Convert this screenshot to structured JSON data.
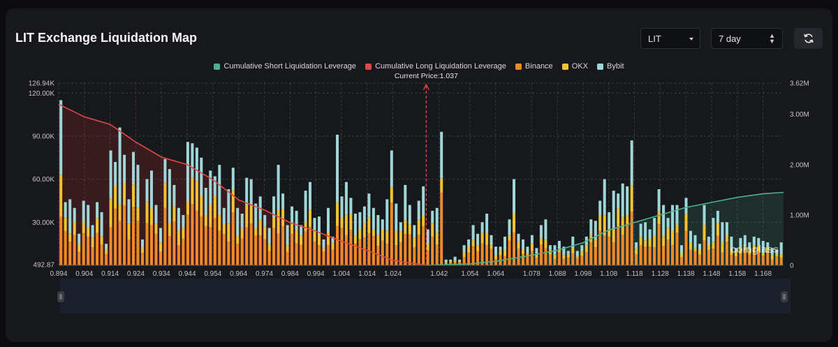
{
  "header": {
    "title": "LIT Exchange Liquidation Map",
    "coin_select": "LIT",
    "range_select": "7 day"
  },
  "watermark": "coinglass",
  "colors": {
    "short_cum": "#4caf8f",
    "long_cum": "#e04848",
    "binance": "#f08a28",
    "okx": "#f2c230",
    "bybit": "#9fd6d8",
    "background": "#17181c"
  },
  "chart_data": {
    "type": "bar",
    "title": "LIT Exchange Liquidation Map",
    "current_price_label": "Current Price:1.037",
    "current_price": 1.037,
    "legend": [
      "Cumulative Short Liquidation Leverage",
      "Cumulative Long Liquidation Leverage",
      "Binance",
      "OKX",
      "Bybit"
    ],
    "x_ticks": [
      "0.894",
      "0.904",
      "0.914",
      "0.924",
      "0.934",
      "0.944",
      "0.954",
      "0.964",
      "0.974",
      "0.984",
      "0.994",
      "1.004",
      "1.014",
      "1.024",
      "1.042",
      "1.054",
      "1.064",
      "1.078",
      "1.088",
      "1.098",
      "1.108",
      "1.118",
      "1.128",
      "1.138",
      "1.148",
      "1.158",
      "1.168"
    ],
    "y_left_ticks": [
      "126.94K",
      "120.00K",
      "90.00K",
      "60.00K",
      "30.00K",
      "492.87"
    ],
    "y_left_range": [
      492.87,
      126940
    ],
    "y_right_ticks": [
      "3.62M",
      "3.00M",
      "2.00M",
      "1.00M",
      "0"
    ],
    "y_right_range": [
      0,
      3620000
    ],
    "price_range": [
      0.894,
      1.176
    ],
    "bars_total": [
      115000,
      44000,
      46000,
      40000,
      22000,
      45000,
      42000,
      28000,
      44000,
      37000,
      15000,
      80000,
      72000,
      96000,
      77000,
      46000,
      79000,
      70000,
      18000,
      60000,
      66000,
      42000,
      26000,
      74000,
      67000,
      56000,
      40000,
      35000,
      86000,
      85000,
      82000,
      75000,
      54000,
      66000,
      62000,
      70000,
      40000,
      53000,
      68000,
      40000,
      36000,
      61000,
      60000,
      43000,
      48000,
      35000,
      26000,
      48000,
      70000,
      50000,
      28000,
      41000,
      38000,
      28000,
      52000,
      58000,
      33000,
      34000,
      18000,
      40000,
      20000,
      91000,
      48000,
      58000,
      47000,
      36000,
      37000,
      41000,
      50000,
      40000,
      35000,
      32000,
      46000,
      80000,
      43000,
      30000,
      56000,
      42000,
      28000,
      45000,
      55000,
      25000,
      38000,
      40000,
      93000,
      4000,
      4000,
      6000,
      4000,
      14000,
      18000,
      28000,
      22000,
      30000,
      36000,
      21000,
      13000,
      13000,
      20000,
      32000,
      60000,
      22000,
      18000,
      13000,
      21000,
      12000,
      28000,
      32000,
      14000,
      14000,
      17000,
      13000,
      10000,
      20000,
      10000,
      14000,
      20000,
      32000,
      31000,
      45000,
      60000,
      37000,
      52000,
      50000,
      57000,
      55000,
      87000,
      16000,
      29000,
      30000,
      25000,
      33000,
      53000,
      42000,
      33000,
      42000,
      42000,
      14000,
      47000,
      24000,
      21000,
      15000,
      42000,
      20000,
      33000,
      38000,
      30000,
      30000,
      20000,
      12000,
      19000,
      21000,
      16000,
      20000,
      19000,
      17000,
      16000,
      12000,
      11000,
      16000
    ],
    "binance_share": 0.42,
    "okx_share": 0.18,
    "long_cum_points": [
      [
        0.894,
        3.2
      ],
      [
        0.904,
        2.95
      ],
      [
        0.914,
        2.8
      ],
      [
        0.924,
        2.45
      ],
      [
        0.934,
        2.15
      ],
      [
        0.944,
        2.0
      ],
      [
        0.954,
        1.7
      ],
      [
        0.964,
        1.3
      ],
      [
        0.974,
        1.1
      ],
      [
        0.984,
        0.85
      ],
      [
        0.994,
        0.68
      ],
      [
        1.004,
        0.48
      ],
      [
        1.014,
        0.3
      ],
      [
        1.024,
        0.1
      ],
      [
        1.037,
        0.0
      ]
    ],
    "short_cum_points": [
      [
        1.037,
        0.0
      ],
      [
        1.054,
        0.03
      ],
      [
        1.064,
        0.08
      ],
      [
        1.078,
        0.2
      ],
      [
        1.088,
        0.3
      ],
      [
        1.098,
        0.45
      ],
      [
        1.108,
        0.7
      ],
      [
        1.118,
        0.85
      ],
      [
        1.128,
        1.0
      ],
      [
        1.138,
        1.15
      ],
      [
        1.148,
        1.25
      ],
      [
        1.158,
        1.35
      ],
      [
        1.168,
        1.42
      ],
      [
        1.176,
        1.45
      ]
    ]
  }
}
